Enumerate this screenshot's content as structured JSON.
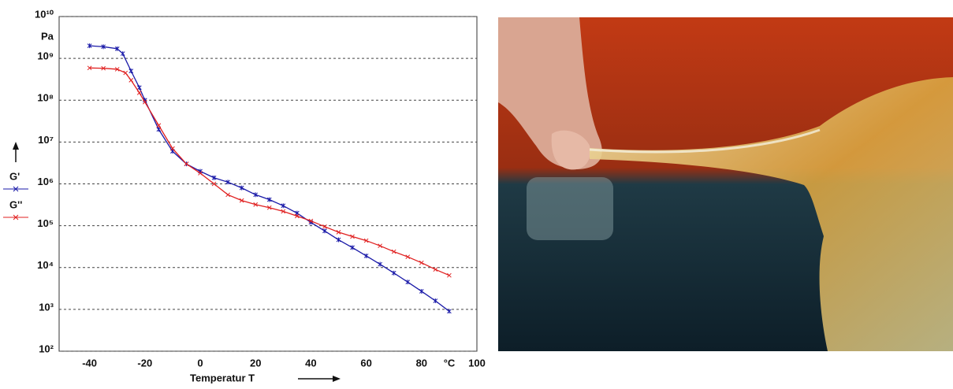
{
  "chart_data": {
    "type": "line",
    "y_label": "Pa",
    "x_label": "Temperatur T",
    "x_unit": "°C",
    "yscale": "log",
    "grid": true,
    "legend": "left",
    "xlim": [
      -51,
      100
    ],
    "xticks": [
      -40,
      -20,
      0,
      20,
      40,
      60,
      80,
      100
    ],
    "ylim": [
      100,
      10000000000
    ],
    "yticks": [
      {
        "value": 10000000000,
        "label": "10¹⁰"
      },
      {
        "value": 1000000000,
        "label": "10⁹"
      },
      {
        "value": 100000000,
        "label": "10⁸"
      },
      {
        "value": 10000000,
        "label": "10⁷"
      },
      {
        "value": 1000000,
        "label": "10⁶"
      },
      {
        "value": 100000,
        "label": "10⁵"
      },
      {
        "value": 10000,
        "label": "10⁴"
      },
      {
        "value": 1000,
        "label": "10³"
      },
      {
        "value": 100,
        "label": "10²"
      }
    ],
    "series": [
      {
        "name": "G'",
        "color": "#1a1aa8",
        "x": [
          -40,
          -35,
          -30,
          -28,
          -25,
          -22,
          -20,
          -15,
          -10,
          -5,
          0,
          5,
          10,
          15,
          20,
          25,
          30,
          35,
          40,
          45,
          50,
          55,
          60,
          65,
          70,
          75,
          80,
          85,
          90
        ],
        "values": [
          2000000000,
          1900000000,
          1700000000,
          1300000000,
          500000000,
          200000000,
          100000000,
          20000000,
          6000000,
          3000000,
          2000000,
          1400000,
          1100000,
          800000,
          550000,
          420000,
          300000,
          200000,
          120000,
          75000,
          46000,
          30000,
          19000,
          12000,
          7400,
          4500,
          2700,
          1600,
          900
        ]
      },
      {
        "name": "G''",
        "color": "#e02020",
        "x": [
          -40,
          -35,
          -30,
          -27,
          -25,
          -22,
          -20,
          -15,
          -10,
          -5,
          0,
          5,
          10,
          15,
          20,
          25,
          30,
          35,
          40,
          45,
          50,
          55,
          60,
          65,
          70,
          75,
          80,
          85,
          90
        ],
        "values": [
          590000000,
          580000000,
          550000000,
          450000000,
          300000000,
          150000000,
          90000000,
          25000000,
          7000000,
          3000000,
          1800000,
          1000000,
          550000,
          400000,
          320000,
          270000,
          220000,
          170000,
          130000,
          95000,
          70000,
          55000,
          44000,
          33000,
          24000,
          18000,
          13000,
          9000,
          6500
        ]
      }
    ]
  }
}
